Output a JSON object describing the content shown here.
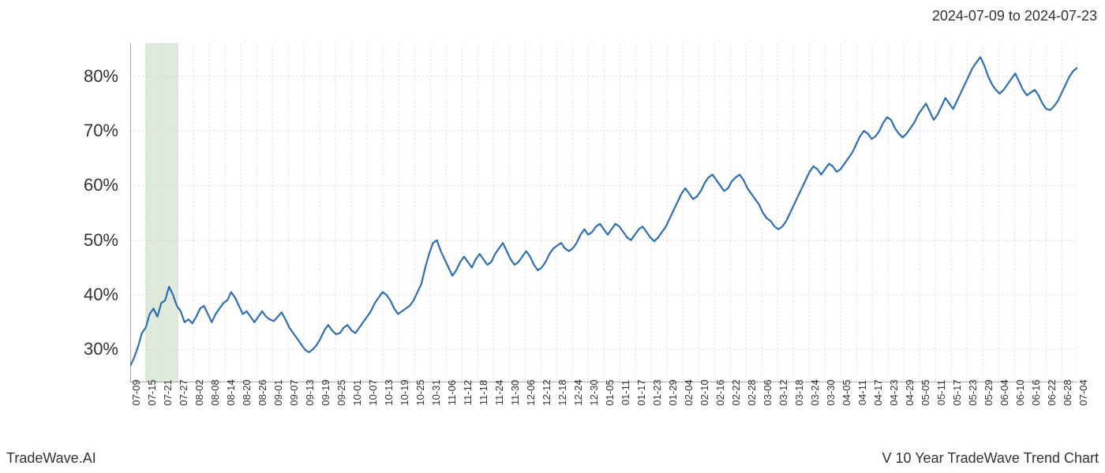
{
  "header": {
    "date_range": "2024-07-09 to 2024-07-23"
  },
  "footer": {
    "left": "TradeWave.AI",
    "right": "V 10 Year TradeWave Trend Chart"
  },
  "chart": {
    "type": "line",
    "background_color": "#ffffff",
    "line_color": "#2e6fb4",
    "line_width": 2.2,
    "grid_color": "#d8d8d8",
    "grid_dash": "2,3",
    "axis_color": "#555555",
    "highlight_band": {
      "fill": "#dfeadb",
      "border": "#c1d9bb",
      "x_start_index": 1,
      "x_end_index": 3
    },
    "ylim": [
      24,
      86
    ],
    "y_ticks": [
      30,
      40,
      50,
      60,
      70,
      80
    ],
    "y_tick_labels": [
      "30%",
      "40%",
      "50%",
      "60%",
      "70%",
      "80%"
    ],
    "y_label_fontsize": 22,
    "x_tick_labels": [
      "07-09",
      "07-15",
      "07-21",
      "07-27",
      "08-02",
      "08-08",
      "08-14",
      "08-20",
      "08-26",
      "09-01",
      "09-07",
      "09-13",
      "09-19",
      "09-25",
      "10-01",
      "10-07",
      "10-13",
      "10-19",
      "10-25",
      "10-31",
      "11-06",
      "11-12",
      "11-18",
      "11-24",
      "11-30",
      "12-06",
      "12-12",
      "12-18",
      "12-24",
      "12-30",
      "01-05",
      "01-11",
      "01-17",
      "01-23",
      "01-29",
      "02-04",
      "02-10",
      "02-16",
      "02-22",
      "02-28",
      "03-06",
      "03-12",
      "03-18",
      "03-24",
      "03-30",
      "04-05",
      "04-11",
      "04-17",
      "04-23",
      "04-29",
      "05-05",
      "05-11",
      "05-17",
      "05-23",
      "05-29",
      "06-04",
      "06-10",
      "06-16",
      "06-22",
      "06-28",
      "07-04"
    ],
    "x_label_fontsize": 13,
    "x_label_color": "#333333",
    "values": [
      27.0,
      28.5,
      30.5,
      33.0,
      34.0,
      36.5,
      37.5,
      36.0,
      38.5,
      39.0,
      41.5,
      40.0,
      38.0,
      37.0,
      35.0,
      35.5,
      34.8,
      36.0,
      37.5,
      38.0,
      36.5,
      35.0,
      36.5,
      37.5,
      38.5,
      39.0,
      40.5,
      39.5,
      38.0,
      36.5,
      37.0,
      36.0,
      35.0,
      36.0,
      37.0,
      36.0,
      35.5,
      35.2,
      36.0,
      36.8,
      35.5,
      34.0,
      33.0,
      32.0,
      31.0,
      30.0,
      29.5,
      30.0,
      30.8,
      32.0,
      33.5,
      34.5,
      33.5,
      32.8,
      33.0,
      34.0,
      34.5,
      33.5,
      33.0,
      34.0,
      35.0,
      36.0,
      37.0,
      38.5,
      39.5,
      40.5,
      40.0,
      39.0,
      37.5,
      36.5,
      37.0,
      37.5,
      38.0,
      39.0,
      40.5,
      42.0,
      45.0,
      47.5,
      49.5,
      50.0,
      48.0,
      46.5,
      45.0,
      43.5,
      44.5,
      46.0,
      47.0,
      46.0,
      45.0,
      46.5,
      47.5,
      46.5,
      45.5,
      46.0,
      47.5,
      48.5,
      49.5,
      48.0,
      46.5,
      45.5,
      46.0,
      47.0,
      48.0,
      47.0,
      45.5,
      44.5,
      45.0,
      46.0,
      47.5,
      48.5,
      49.0,
      49.5,
      48.5,
      48.0,
      48.5,
      49.5,
      51.0,
      52.0,
      51.0,
      51.5,
      52.5,
      53.0,
      52.0,
      51.0,
      52.0,
      53.0,
      52.5,
      51.5,
      50.5,
      50.0,
      51.0,
      52.0,
      52.5,
      51.5,
      50.5,
      49.8,
      50.5,
      51.5,
      52.5,
      54.0,
      55.5,
      57.0,
      58.5,
      59.5,
      58.5,
      57.5,
      58.0,
      59.0,
      60.5,
      61.5,
      62.0,
      61.0,
      60.0,
      59.0,
      59.5,
      60.8,
      61.5,
      62.0,
      61.0,
      59.5,
      58.5,
      57.5,
      56.5,
      55.0,
      54.0,
      53.5,
      52.5,
      52.0,
      52.5,
      53.5,
      55.0,
      56.5,
      58.0,
      59.5,
      61.0,
      62.5,
      63.5,
      63.0,
      62.0,
      63.0,
      64.0,
      63.5,
      62.5,
      63.0,
      64.0,
      65.0,
      66.0,
      67.5,
      69.0,
      70.0,
      69.5,
      68.5,
      69.0,
      70.0,
      71.5,
      72.5,
      72.0,
      70.5,
      69.5,
      68.8,
      69.5,
      70.5,
      71.5,
      73.0,
      74.0,
      75.0,
      73.5,
      72.0,
      73.0,
      74.5,
      76.0,
      75.0,
      74.0,
      75.5,
      77.0,
      78.5,
      80.0,
      81.5,
      82.5,
      83.5,
      82.0,
      80.0,
      78.5,
      77.5,
      76.8,
      77.5,
      78.5,
      79.5,
      80.5,
      79.0,
      77.5,
      76.5,
      77.0,
      77.5,
      76.5,
      75.0,
      74.0,
      73.8,
      74.5,
      75.5,
      77.0,
      78.5,
      80.0,
      81.0,
      81.5
    ]
  }
}
